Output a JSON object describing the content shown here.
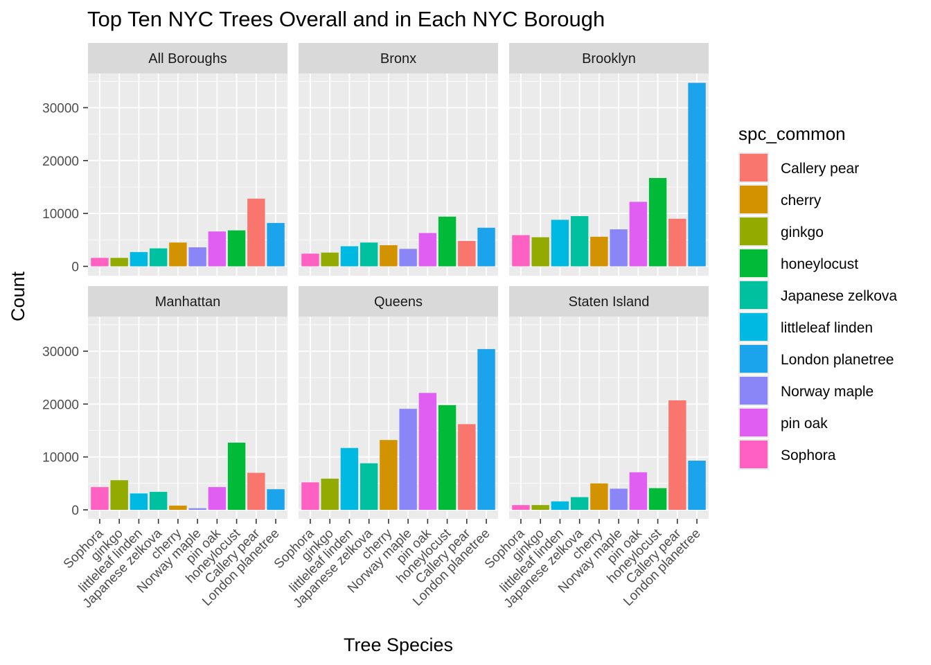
{
  "chart_data": {
    "type": "bar",
    "title": "Top Ten NYC Trees Overall and in Each NYC Borough",
    "xlabel": "Tree Species",
    "ylabel": "Count",
    "ylim": [
      0,
      36000
    ],
    "yticks": [
      0,
      10000,
      20000,
      30000
    ],
    "grid": true,
    "legend": {
      "title": "spc_common",
      "position": "right",
      "entries": [
        "Callery pear",
        "cherry",
        "ginkgo",
        "honeylocust",
        "Japanese zelkova",
        "littleleaf linden",
        "London planetree",
        "Norway maple",
        "pin oak",
        "Sophora"
      ]
    },
    "colors": {
      "Callery pear": "#F8766D",
      "cherry": "#D39200",
      "ginkgo": "#93AA00",
      "honeylocust": "#00BA38",
      "Japanese zelkova": "#00C19F",
      "littleleaf linden": "#00B9E3",
      "London planetree": "#1BA3EC",
      "Norway maple": "#8B86F8",
      "pin oak": "#E05EF2",
      "Sophora": "#FF61C3"
    },
    "categories": [
      "Sophora",
      "ginkgo",
      "littleleaf linden",
      "Japanese zelkova",
      "cherry",
      "Norway maple",
      "pin oak",
      "honeylocust",
      "Callery pear",
      "London planetree"
    ],
    "facets": [
      {
        "name": "All Boroughs",
        "values": [
          1600,
          1600,
          2700,
          3400,
          4500,
          3600,
          6600,
          6800,
          12800,
          8200
        ]
      },
      {
        "name": "Bronx",
        "values": [
          2400,
          2600,
          3800,
          4500,
          4000,
          3300,
          6300,
          9400,
          4800,
          7300
        ]
      },
      {
        "name": "Brooklyn",
        "values": [
          5900,
          5500,
          8800,
          9500,
          5600,
          7000,
          12200,
          16700,
          9000,
          34700
        ]
      },
      {
        "name": "Manhattan",
        "values": [
          4300,
          5600,
          3100,
          3400,
          800,
          300,
          4300,
          12700,
          7000,
          3900
        ]
      },
      {
        "name": "Queens",
        "values": [
          5200,
          5900,
          11700,
          8800,
          13200,
          19100,
          22100,
          19800,
          16200,
          30400
        ]
      },
      {
        "name": "Staten Island",
        "values": [
          900,
          900,
          1600,
          2400,
          5000,
          4000,
          7100,
          4100,
          20700,
          9300
        ]
      }
    ]
  }
}
